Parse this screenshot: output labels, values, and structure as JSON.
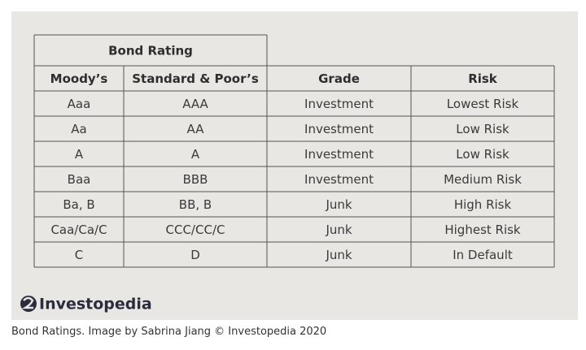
{
  "table": {
    "group_header": "Bond Rating",
    "headers": [
      "Moody’s",
      "Standard & Poor’s",
      "Grade",
      "Risk"
    ],
    "rows": [
      [
        "Aaa",
        "AAA",
        "Investment",
        "Lowest Risk"
      ],
      [
        "Aa",
        "AA",
        "Investment",
        "Low Risk"
      ],
      [
        "A",
        "A",
        "Investment",
        "Low Risk"
      ],
      [
        "Baa",
        "BBB",
        "Investment",
        "Medium Risk"
      ],
      [
        "Ba, B",
        "BB, B",
        "Junk",
        "High Risk"
      ],
      [
        "Caa/Ca/C",
        "CCC/CC/C",
        "Junk",
        "Highest Risk"
      ],
      [
        "C",
        "D",
        "Junk",
        "In Default"
      ]
    ]
  },
  "logo": "Investopedia",
  "caption": "Bond Ratings. Image by Sabrina Jiang © Investopedia 2020"
}
